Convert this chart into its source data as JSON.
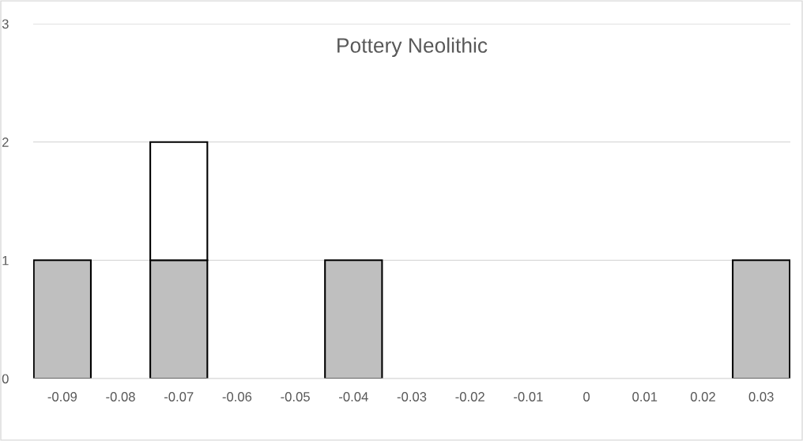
{
  "chart_data": {
    "type": "bar",
    "title": "Pottery Neolithic",
    "stacked": true,
    "categories": [
      "-0.09",
      "-0.08",
      "-0.07",
      "-0.06",
      "-0.05",
      "-0.04",
      "-0.03",
      "-0.02",
      "-0.01",
      "0",
      "0.01",
      "0.02",
      "0.03"
    ],
    "series": [
      {
        "color": "#bfbfbf",
        "values": [
          1,
          null,
          1,
          null,
          null,
          1,
          null,
          null,
          null,
          null,
          null,
          null,
          1
        ]
      },
      {
        "color": "#ffffff",
        "values": [
          null,
          null,
          1,
          null,
          null,
          null,
          null,
          null,
          null,
          null,
          null,
          null,
          null
        ]
      }
    ],
    "ylim": [
      0,
      3
    ],
    "yticks": [
      0,
      1,
      2,
      3
    ],
    "grid": "y",
    "legend": false
  }
}
